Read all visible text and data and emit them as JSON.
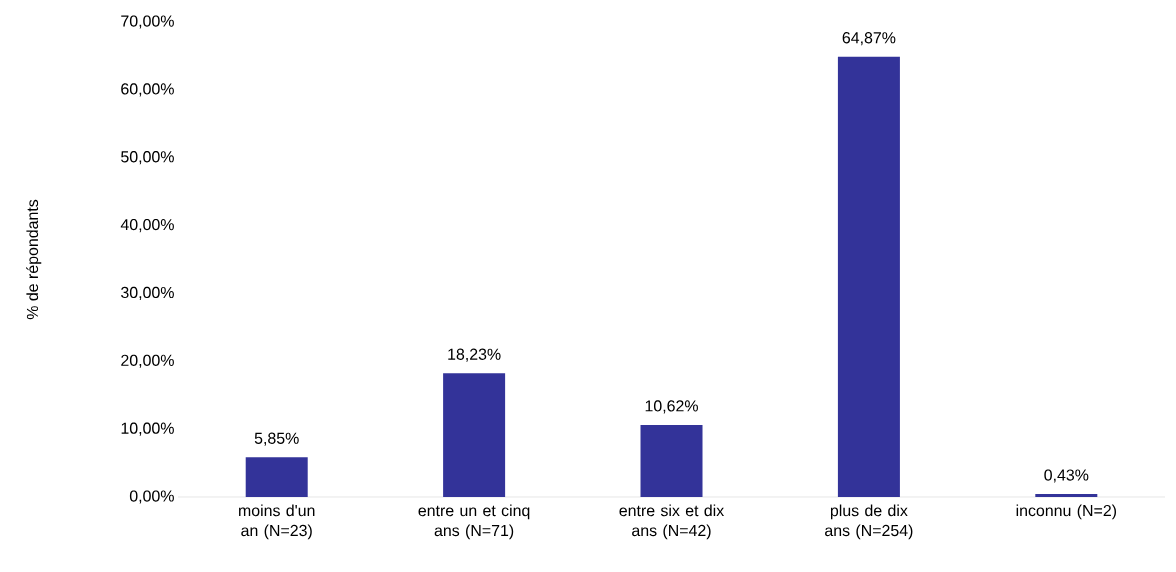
{
  "chart_data": {
    "type": "bar",
    "ylabel": "% de répondants",
    "categories": [
      "moins d'un an (N=23)",
      "entre un et cinq ans (N=71)",
      "entre six et dix ans (N=42)",
      "plus de dix ans (N=254)",
      "inconnu (N=2)"
    ],
    "values": [
      5.85,
      18.23,
      10.62,
      64.87,
      0.43
    ],
    "value_labels": [
      "5,85%",
      "18,23%",
      "10,62%",
      "64,87%",
      "0,43%"
    ],
    "color": "#333399",
    "ylim": [
      0,
      70
    ],
    "yticks": [
      {
        "value": 0,
        "label": "0,00%"
      },
      {
        "value": 10,
        "label": "10,00%"
      },
      {
        "value": 20,
        "label": "20,00%"
      },
      {
        "value": 30,
        "label": "30,00%"
      },
      {
        "value": 40,
        "label": "40,00%"
      },
      {
        "value": 50,
        "label": "50,00%"
      },
      {
        "value": 60,
        "label": "60,00%"
      },
      {
        "value": 70,
        "label": "70,00%"
      }
    ],
    "grid": false
  }
}
